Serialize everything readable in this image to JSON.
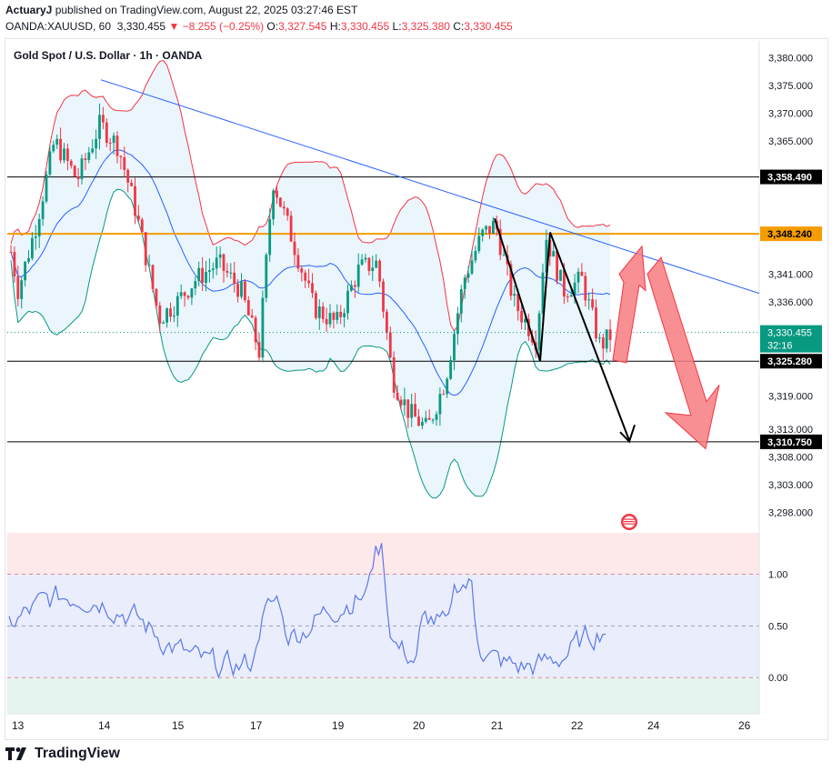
{
  "header": {
    "author": "ActuaryJ",
    "published_text": "published on TradingView.com, August 22, 2025 03:27:46 EST",
    "symbol": "OANDA:XAUUSD, 60",
    "last": "3,330.455",
    "change": "▼ −8.255 (−0.25%)",
    "o_label": "O:",
    "o_value": "3,327.545",
    "h_label": "H:",
    "h_value": "3,330.455",
    "l_label": "L:",
    "l_value": "3,325.380",
    "c_label": "C:",
    "c_value": "3,330.455"
  },
  "chart_title": "Gold Spot / U.S. Dollar · 1h · OANDA",
  "footer_brand": "TradingView",
  "colors": {
    "up": "#089981",
    "down": "#f23645",
    "trend": "#2962ff",
    "resistance": "#f59d00",
    "oscillator": "#5b79e8",
    "arrow": "#f77c80"
  },
  "chart_data": {
    "type": "candlestick",
    "price_axis": {
      "ylim": [
        3295,
        3383
      ],
      "ticks": [
        "3,380.000",
        "3,375.000",
        "3,370.000",
        "3,365.000",
        "3,341.000",
        "3,336.000",
        "3,319.000",
        "3,313.000",
        "3,308.000",
        "3,303.000",
        "3,298.000"
      ],
      "tick_values": [
        3380,
        3375,
        3370,
        3365,
        3341,
        3336,
        3319,
        3313,
        3308,
        3303,
        3298
      ]
    },
    "time_axis": {
      "labels": [
        "13",
        "14",
        "15",
        "17",
        "19",
        "20",
        "21",
        "22",
        "24",
        "26"
      ]
    },
    "horizontal_levels": [
      {
        "price": 3358.49,
        "label": "3,358.490",
        "color": "#000000"
      },
      {
        "price": 3348.24,
        "label": "3,348.240",
        "color": "#f59d00"
      },
      {
        "price": 3325.28,
        "label": "3,325.280",
        "color": "#000000"
      },
      {
        "price": 3310.75,
        "label": "3,310.750",
        "color": "#000000"
      }
    ],
    "current_price": {
      "price": 3330.455,
      "label": "3,330.455",
      "countdown": "32:16"
    },
    "oscillator": {
      "ylim": [
        -0.35,
        1.4
      ],
      "ticks": [
        "1.00",
        "0.50",
        "0.00"
      ],
      "tick_values": [
        1.0,
        0.5,
        0.0
      ]
    }
  }
}
